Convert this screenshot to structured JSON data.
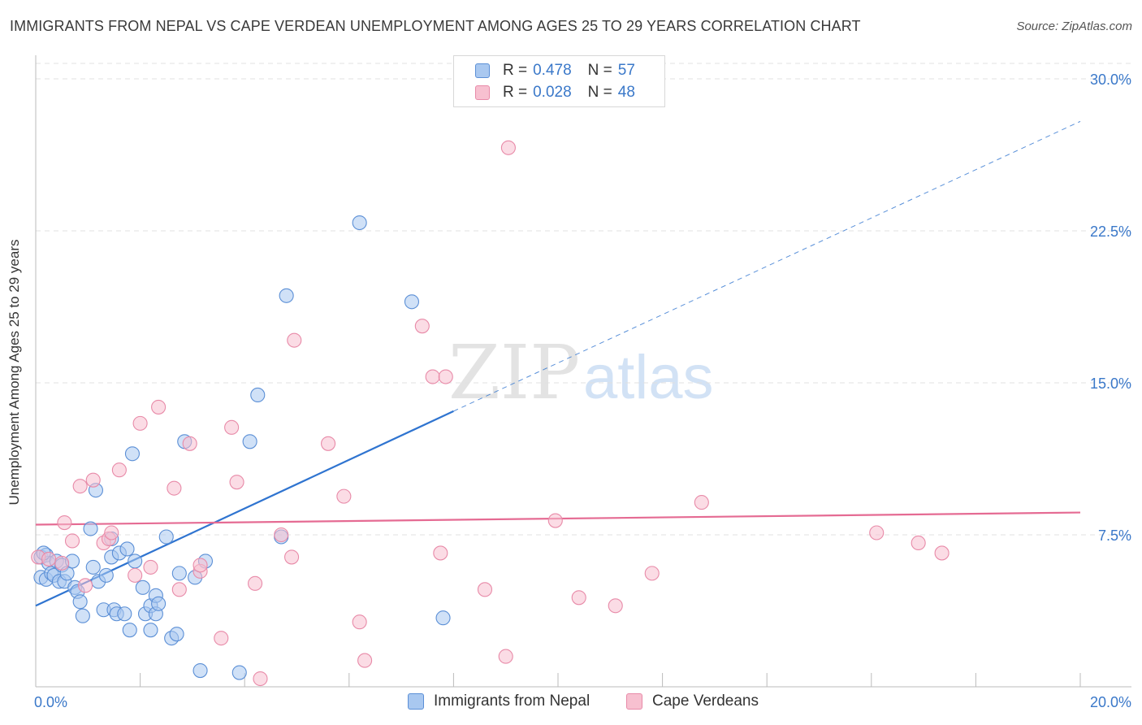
{
  "title": "IMMIGRANTS FROM NEPAL VS CAPE VERDEAN UNEMPLOYMENT AMONG AGES 25 TO 29 YEARS CORRELATION CHART",
  "source": "Source: ZipAtlas.com",
  "watermark": {
    "zip": "ZIP",
    "atlas": "atlas"
  },
  "legend": [
    {
      "r_label": "R =",
      "r_value": "0.478",
      "n_label": "N =",
      "n_value": "57"
    },
    {
      "r_label": "R =",
      "r_value": "0.028",
      "n_label": "N =",
      "n_value": "48"
    }
  ],
  "colors": {
    "blue_fill": "#a9c8f0",
    "blue_stroke": "#5b8fd6",
    "blue_line": "#2f74d0",
    "pink_fill": "#f7c0d0",
    "pink_stroke": "#e88aa8",
    "pink_line": "#e56b93",
    "tick_label": "#3a78c9",
    "grid": "#e0e0e0"
  },
  "chart_data": {
    "type": "scatter",
    "title": "IMMIGRANTS FROM NEPAL VS CAPE VERDEAN UNEMPLOYMENT AMONG AGES 25 TO 29 YEARS CORRELATION CHART",
    "xlabel": "",
    "ylabel": "Unemployment Among Ages 25 to 29 years",
    "xlim": [
      0,
      20
    ],
    "ylim": [
      0,
      30
    ],
    "x_tick_labels": [
      {
        "x": 0,
        "label": "0.0%"
      },
      {
        "x": 20,
        "label": "20.0%"
      }
    ],
    "y_tick_labels": [
      {
        "y": 7.5,
        "label": "7.5%"
      },
      {
        "y": 15,
        "label": "15.0%"
      },
      {
        "y": 22.5,
        "label": "22.5%"
      },
      {
        "y": 30,
        "label": "30.0%"
      }
    ],
    "grid": true,
    "series": [
      {
        "name": "Immigrants from Nepal",
        "color": "blue",
        "trend": {
          "x": [
            0,
            8
          ],
          "y": [
            4.0,
            13.6
          ],
          "extended_x": [
            8,
            20
          ],
          "extended_y": [
            13.6,
            27.9
          ],
          "style": "solid then dashed"
        },
        "points": [
          [
            0.1,
            6.4
          ],
          [
            0.1,
            5.4
          ],
          [
            0.2,
            6.5
          ],
          [
            0.2,
            5.3
          ],
          [
            0.25,
            6.1
          ],
          [
            0.3,
            5.6
          ],
          [
            0.35,
            5.5
          ],
          [
            0.4,
            6.2
          ],
          [
            0.45,
            5.2
          ],
          [
            0.5,
            6.0
          ],
          [
            0.55,
            5.2
          ],
          [
            0.6,
            5.6
          ],
          [
            0.7,
            6.2
          ],
          [
            0.75,
            4.9
          ],
          [
            0.8,
            4.7
          ],
          [
            0.85,
            4.2
          ],
          [
            0.9,
            3.5
          ],
          [
            1.05,
            7.8
          ],
          [
            1.1,
            5.9
          ],
          [
            1.15,
            9.7
          ],
          [
            1.2,
            5.2
          ],
          [
            1.3,
            3.8
          ],
          [
            1.35,
            5.5
          ],
          [
            1.45,
            7.3
          ],
          [
            1.45,
            6.4
          ],
          [
            1.5,
            3.8
          ],
          [
            1.55,
            3.6
          ],
          [
            1.6,
            6.6
          ],
          [
            1.7,
            3.6
          ],
          [
            1.75,
            6.8
          ],
          [
            1.8,
            2.8
          ],
          [
            1.85,
            11.5
          ],
          [
            1.9,
            6.2
          ],
          [
            2.05,
            4.9
          ],
          [
            2.1,
            3.6
          ],
          [
            2.2,
            2.8
          ],
          [
            2.2,
            4.0
          ],
          [
            2.3,
            4.5
          ],
          [
            2.3,
            3.6
          ],
          [
            2.35,
            4.1
          ],
          [
            2.5,
            7.4
          ],
          [
            2.6,
            2.4
          ],
          [
            2.7,
            2.6
          ],
          [
            2.75,
            5.6
          ],
          [
            2.85,
            12.1
          ],
          [
            3.05,
            5.4
          ],
          [
            3.15,
            0.8
          ],
          [
            3.25,
            6.2
          ],
          [
            3.9,
            0.7
          ],
          [
            4.1,
            12.1
          ],
          [
            4.25,
            14.4
          ],
          [
            4.7,
            7.4
          ],
          [
            4.8,
            19.3
          ],
          [
            6.2,
            22.9
          ],
          [
            7.2,
            19.0
          ],
          [
            7.8,
            3.4
          ],
          [
            0.15,
            6.6
          ]
        ]
      },
      {
        "name": "Cape Verdeans",
        "color": "pink",
        "trend": {
          "x": [
            0,
            20
          ],
          "y": [
            8.0,
            8.6
          ],
          "style": "solid"
        },
        "points": [
          [
            0.05,
            6.4
          ],
          [
            0.25,
            6.3
          ],
          [
            0.5,
            6.1
          ],
          [
            0.55,
            8.1
          ],
          [
            0.7,
            7.2
          ],
          [
            0.85,
            9.9
          ],
          [
            0.95,
            5.0
          ],
          [
            1.1,
            10.2
          ],
          [
            1.3,
            7.1
          ],
          [
            1.4,
            7.3
          ],
          [
            1.45,
            7.6
          ],
          [
            1.6,
            10.7
          ],
          [
            1.9,
            5.5
          ],
          [
            2.0,
            13.0
          ],
          [
            2.2,
            5.9
          ],
          [
            2.35,
            13.8
          ],
          [
            2.65,
            9.8
          ],
          [
            2.75,
            4.8
          ],
          [
            2.95,
            12.0
          ],
          [
            3.15,
            5.7
          ],
          [
            3.15,
            6.0
          ],
          [
            3.55,
            2.4
          ],
          [
            3.75,
            12.8
          ],
          [
            3.85,
            10.1
          ],
          [
            4.2,
            5.1
          ],
          [
            4.3,
            0.4
          ],
          [
            4.7,
            7.5
          ],
          [
            4.9,
            6.4
          ],
          [
            4.95,
            17.1
          ],
          [
            5.6,
            12.0
          ],
          [
            5.9,
            9.4
          ],
          [
            6.2,
            3.2
          ],
          [
            6.3,
            1.3
          ],
          [
            7.4,
            17.8
          ],
          [
            7.6,
            15.3
          ],
          [
            7.85,
            15.3
          ],
          [
            7.75,
            6.6
          ],
          [
            8.6,
            4.8
          ],
          [
            9.0,
            1.5
          ],
          [
            9.05,
            26.6
          ],
          [
            9.95,
            8.2
          ],
          [
            10.4,
            4.4
          ],
          [
            11.1,
            4.0
          ],
          [
            11.8,
            5.6
          ],
          [
            12.75,
            9.1
          ],
          [
            16.1,
            7.6
          ],
          [
            16.9,
            7.1
          ],
          [
            17.35,
            6.6
          ]
        ]
      }
    ]
  },
  "bottom_legend": [
    "Immigrants from Nepal",
    "Cape Verdeans"
  ]
}
